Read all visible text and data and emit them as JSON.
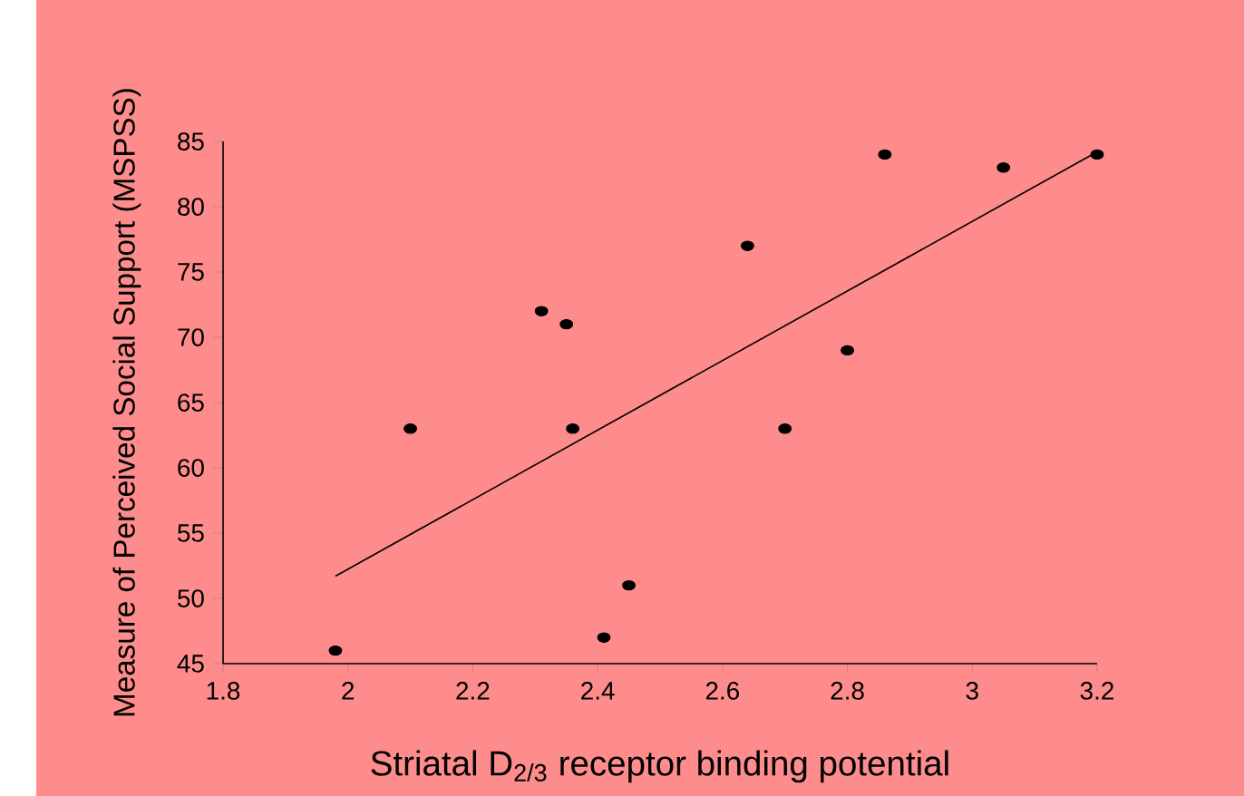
{
  "chart_data": {
    "type": "scatter",
    "xlabel": "Striatal D$_{2/3}$ receptor binding potential",
    "ylabel": "Measure of Perceived Social Support (MSPSS)",
    "xlim": [
      1.8,
      3.2
    ],
    "xticks": [
      1.8,
      2,
      2.2,
      2.4,
      2.6,
      2.8,
      3,
      3.2
    ],
    "ylim": [
      45,
      85
    ],
    "yticks": [
      45,
      50,
      55,
      60,
      65,
      70,
      75,
      80,
      85
    ],
    "series": [
      {
        "color": "#000000",
        "marker": "circle",
        "x": [
          1.98,
          2.1,
          2.31,
          2.35,
          2.36,
          2.41,
          2.45,
          2.64,
          2.7,
          2.8,
          2.86,
          3.05,
          3.2
        ],
        "values": [
          46,
          63,
          72,
          71,
          63,
          47,
          51,
          77,
          63,
          69,
          84,
          83,
          84
        ]
      },
      {
        "type": "line",
        "color": "#000000",
        "marker": "none",
        "line_style": "solid",
        "x": [
          1.98,
          3.2
        ],
        "values": [
          51.7,
          84.2
        ]
      }
    ]
  }
}
